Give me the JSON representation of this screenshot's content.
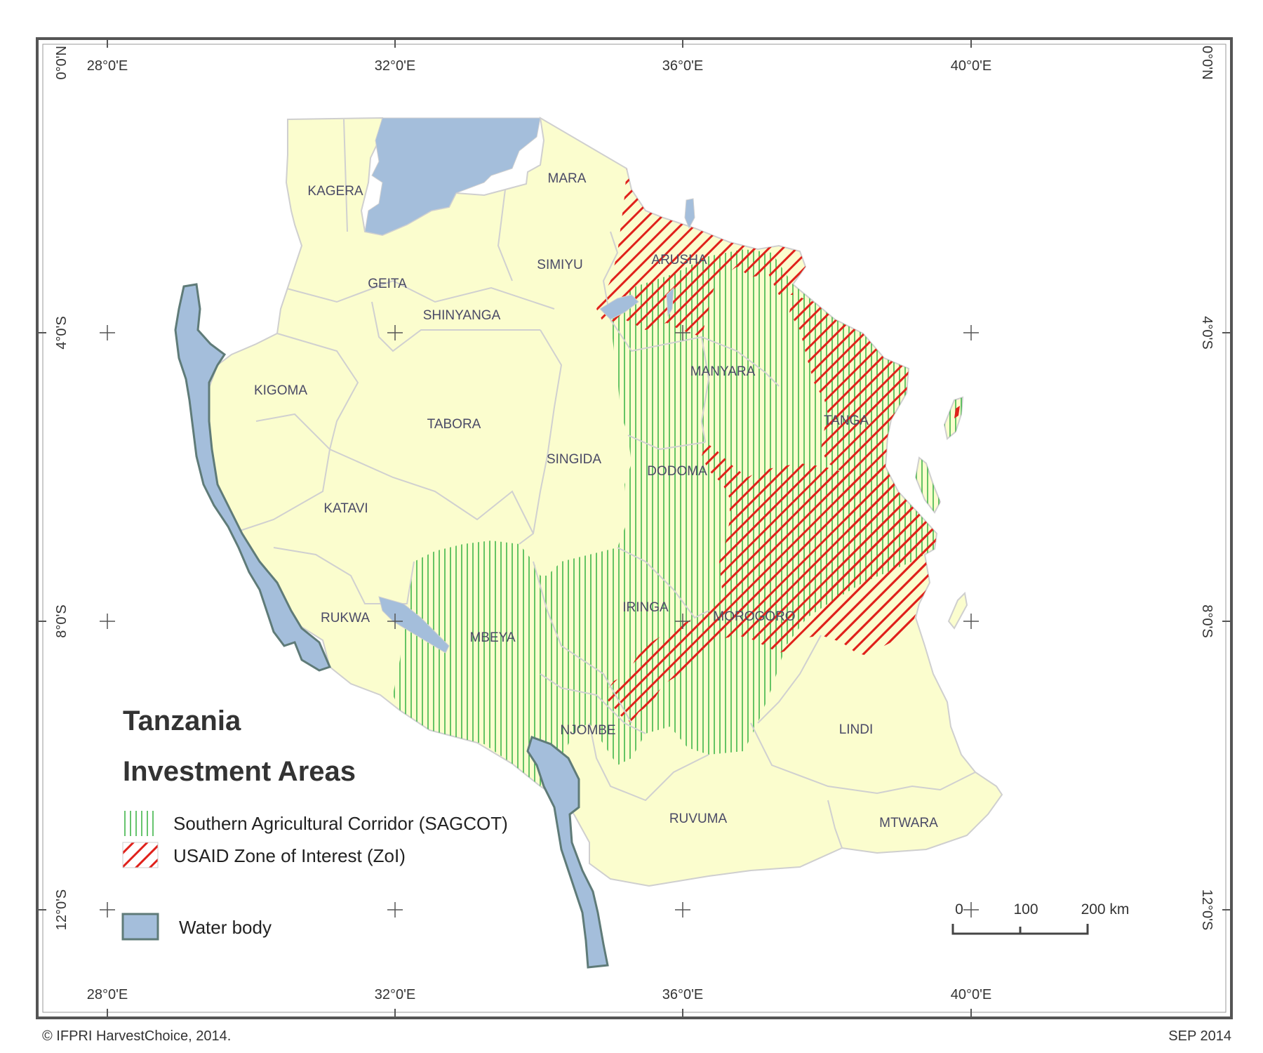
{
  "map": {
    "legend": {
      "title_line1": "Tanzania",
      "title_line2": "Investment Areas",
      "items": [
        {
          "label": "Southern Agricultural Corridor (SAGCOT)",
          "pattern": "green-vertical-hatch",
          "color": "#3fb54a"
        },
        {
          "label": "USAID Zone of Interest (ZoI)",
          "pattern": "red-diagonal-hatch",
          "color": "#e0211b"
        },
        {
          "label": "Water body",
          "pattern": "solid",
          "color": "#a4bedb"
        }
      ]
    },
    "colors": {
      "land": "#fbfdce",
      "water": "#a4bedb",
      "water_outline": "#5f7b78",
      "boundary": "#cfcfcf",
      "sagcot": "#3fb54a",
      "zoi": "#e0211b"
    },
    "longitude_labels": [
      "28°0'E",
      "32°0'E",
      "36°0'E",
      "40°0'E"
    ],
    "latitude_labels": [
      "0°0'N",
      "4°0'S",
      "8°0'S",
      "12°0'S"
    ],
    "regions": [
      {
        "name": "KAGERA"
      },
      {
        "name": "MARA"
      },
      {
        "name": "ARUSHA"
      },
      {
        "name": "SIMIYU"
      },
      {
        "name": "GEITA"
      },
      {
        "name": "SHINYANGA"
      },
      {
        "name": "KIGOMA"
      },
      {
        "name": "MANYARA"
      },
      {
        "name": "TABORA"
      },
      {
        "name": "TANGA"
      },
      {
        "name": "SINGIDA"
      },
      {
        "name": "DODOMA"
      },
      {
        "name": "KATAVI"
      },
      {
        "name": "IRINGA"
      },
      {
        "name": "RUKWA"
      },
      {
        "name": "MBEYA"
      },
      {
        "name": "MOROGORO"
      },
      {
        "name": "NJOMBE"
      },
      {
        "name": "LINDI"
      },
      {
        "name": "RUVUMA"
      },
      {
        "name": "MTWARA"
      }
    ],
    "scale_bar": {
      "labels": [
        "0",
        "100",
        "200 km"
      ]
    }
  },
  "footer": {
    "credit": "© IFPRI HarvestChoice, 2014.",
    "date": "SEP 2014"
  }
}
